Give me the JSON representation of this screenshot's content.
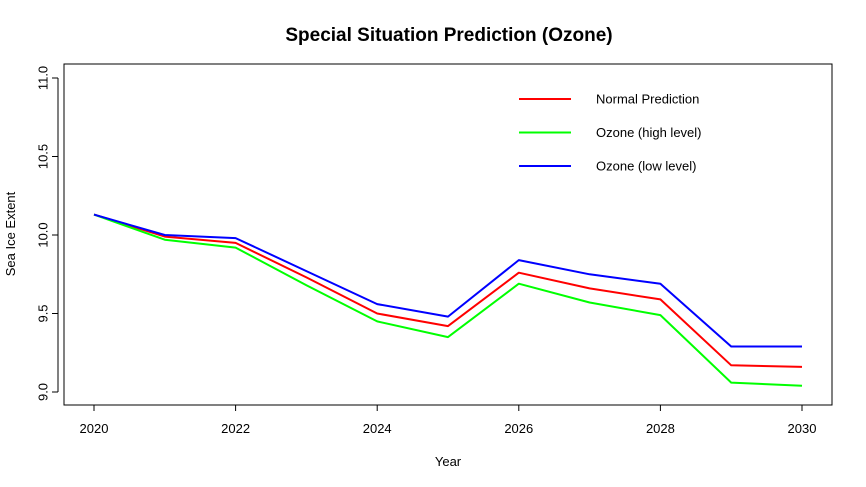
{
  "chart_data": {
    "type": "line",
    "title": "Special Situation Prediction (Ozone)",
    "xlabel": "Year",
    "ylabel": "Sea Ice Extent",
    "x": [
      2020,
      2021,
      2022,
      2023,
      2024,
      2025,
      2026,
      2027,
      2028,
      2029,
      2030
    ],
    "xticks": [
      2020,
      2022,
      2024,
      2026,
      2028,
      2030
    ],
    "yticks": [
      9.0,
      9.5,
      10.0,
      10.5,
      11.0
    ],
    "ytick_labels": [
      "9.0",
      "9.5",
      "10.0",
      "10.5",
      "11.0"
    ],
    "xlim": [
      2020,
      2030
    ],
    "ylim": [
      9.0,
      11.0
    ],
    "grid": false,
    "legend_position": "top-right",
    "series": [
      {
        "name": "Normal Prediction",
        "color": "#ff0000",
        "values": [
          10.13,
          9.99,
          9.95,
          9.73,
          9.5,
          9.42,
          9.76,
          9.66,
          9.59,
          9.17,
          9.16
        ]
      },
      {
        "name": "Ozone (high level)",
        "color": "#00ff00",
        "values": [
          10.13,
          9.97,
          9.92,
          9.68,
          9.45,
          9.35,
          9.69,
          9.57,
          9.49,
          9.06,
          9.04
        ]
      },
      {
        "name": "Ozone (low level)",
        "color": "#0000ff",
        "values": [
          10.13,
          10.0,
          9.98,
          9.77,
          9.56,
          9.48,
          9.84,
          9.75,
          9.69,
          9.29,
          9.29
        ]
      }
    ]
  }
}
